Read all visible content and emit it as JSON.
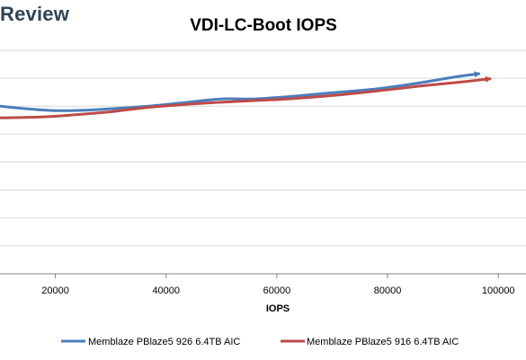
{
  "brand": {
    "text": "Review"
  },
  "chart_data": {
    "type": "line",
    "title": "VDI-LC-Boot IOPS",
    "xlabel": "IOPS",
    "ylabel": "",
    "xlim": [
      10000,
      105000
    ],
    "ylim": [
      0,
      8
    ],
    "x_ticks": [
      20000,
      40000,
      60000,
      80000,
      100000
    ],
    "x_tick_labels": [
      "20000",
      "40000",
      "60000",
      "80000",
      "100000"
    ],
    "y_gridlines": [
      0,
      1,
      2,
      3,
      4,
      5,
      6,
      7,
      8
    ],
    "grid": true,
    "legend_position": "bottom",
    "series": [
      {
        "name": "Memblaze PBlaze5 926 6.4TB AIC",
        "color": "#4a7ebb",
        "points": [
          [
            10000,
            6.0
          ],
          [
            14000,
            5.92
          ],
          [
            20000,
            5.84
          ],
          [
            26000,
            5.86
          ],
          [
            32000,
            5.93
          ],
          [
            38000,
            6.02
          ],
          [
            44000,
            6.14
          ],
          [
            50000,
            6.26
          ],
          [
            56000,
            6.26
          ],
          [
            62000,
            6.34
          ],
          [
            70000,
            6.48
          ],
          [
            78000,
            6.62
          ],
          [
            86000,
            6.84
          ],
          [
            92000,
            7.04
          ],
          [
            96500,
            7.16
          ]
        ]
      },
      {
        "name": "Memblaze PBlaze5 916 6.4TB AIC",
        "color": "#be4b48",
        "points": [
          [
            10000,
            5.58
          ],
          [
            18000,
            5.62
          ],
          [
            24000,
            5.7
          ],
          [
            30000,
            5.8
          ],
          [
            36000,
            5.94
          ],
          [
            42000,
            6.04
          ],
          [
            48000,
            6.12
          ],
          [
            56000,
            6.2
          ],
          [
            62000,
            6.26
          ],
          [
            70000,
            6.38
          ],
          [
            78000,
            6.54
          ],
          [
            86000,
            6.72
          ],
          [
            94000,
            6.88
          ],
          [
            98500,
            6.98
          ]
        ]
      }
    ]
  }
}
